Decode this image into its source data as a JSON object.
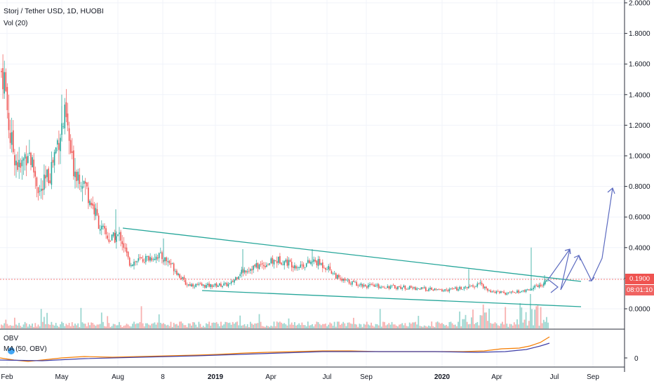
{
  "header": {
    "symbol_line": "Storj / Tether USD, 1D, HUOBI",
    "vol_label": "Vol (20)",
    "obv_label": "OBV",
    "ma_label": "MA (50, OBV)"
  },
  "price_axis": {
    "ticks": [
      "2.0000",
      "1.8000",
      "1.6000",
      "1.4000",
      "1.2000",
      "1.0000",
      "0.8000",
      "0.6000",
      "0.4000",
      "0.2000",
      "0.0000"
    ],
    "current_price": "0.1900",
    "countdown": "08:01:10"
  },
  "obv_axis": {
    "zero_label": "0"
  },
  "time_axis": {
    "labels": [
      "Feb",
      "May",
      "Aug",
      "8",
      "2019",
      "Apr",
      "Jul",
      "Sep",
      "2020",
      "Apr",
      "Jul",
      "Sep"
    ]
  },
  "colors": {
    "up": "#26a69a",
    "down": "#ef5350",
    "trendline": "#26a69a",
    "drawing": "#5c6bc0",
    "obv": "#f57c00",
    "ma": "#3f3fa8",
    "price_tag": "#ef5350",
    "countdown_tag": "#ef5350"
  },
  "chart_data": {
    "type": "candlestick",
    "ylim": [
      0,
      2.0
    ],
    "x_range": [
      "2018-01",
      "2020-10"
    ],
    "price_path": [
      {
        "x": "2018-01-25",
        "y": 1.55
      },
      {
        "x": "2018-02-05",
        "y": 1.1
      },
      {
        "x": "2018-02-20",
        "y": 0.9
      },
      {
        "x": "2018-03-05",
        "y": 1.05
      },
      {
        "x": "2018-03-25",
        "y": 0.75
      },
      {
        "x": "2018-04-10",
        "y": 0.9
      },
      {
        "x": "2018-04-25",
        "y": 1.15
      },
      {
        "x": "2018-05-05",
        "y": 1.25
      },
      {
        "x": "2018-05-15",
        "y": 0.95
      },
      {
        "x": "2018-06-01",
        "y": 0.85
      },
      {
        "x": "2018-06-15",
        "y": 0.7
      },
      {
        "x": "2018-07-01",
        "y": 0.52
      },
      {
        "x": "2018-07-15",
        "y": 0.45
      },
      {
        "x": "2018-08-01",
        "y": 0.48
      },
      {
        "x": "2018-08-15",
        "y": 0.3
      },
      {
        "x": "2018-09-05",
        "y": 0.32
      },
      {
        "x": "2018-10-01",
        "y": 0.35
      },
      {
        "x": "2018-10-20",
        "y": 0.3
      },
      {
        "x": "2018-11-15",
        "y": 0.16
      },
      {
        "x": "2018-12-15",
        "y": 0.15
      },
      {
        "x": "2019-01-25",
        "y": 0.16
      },
      {
        "x": "2019-02-10",
        "y": 0.24
      },
      {
        "x": "2019-03-01",
        "y": 0.27
      },
      {
        "x": "2019-04-15",
        "y": 0.32
      },
      {
        "x": "2019-05-15",
        "y": 0.28
      },
      {
        "x": "2019-06-10",
        "y": 0.31
      },
      {
        "x": "2019-07-01",
        "y": 0.27
      },
      {
        "x": "2019-07-20",
        "y": 0.19
      },
      {
        "x": "2019-09-01",
        "y": 0.15
      },
      {
        "x": "2019-11-01",
        "y": 0.14
      },
      {
        "x": "2020-01-01",
        "y": 0.12
      },
      {
        "x": "2020-02-15",
        "y": 0.14
      },
      {
        "x": "2020-03-01",
        "y": 0.17
      },
      {
        "x": "2020-03-15",
        "y": 0.12
      },
      {
        "x": "2020-04-15",
        "y": 0.1
      },
      {
        "x": "2020-05-15",
        "y": 0.12
      },
      {
        "x": "2020-06-10",
        "y": 0.16
      },
      {
        "x": "2020-06-25",
        "y": 0.19
      }
    ],
    "series": [],
    "last_price": 0.19
  }
}
